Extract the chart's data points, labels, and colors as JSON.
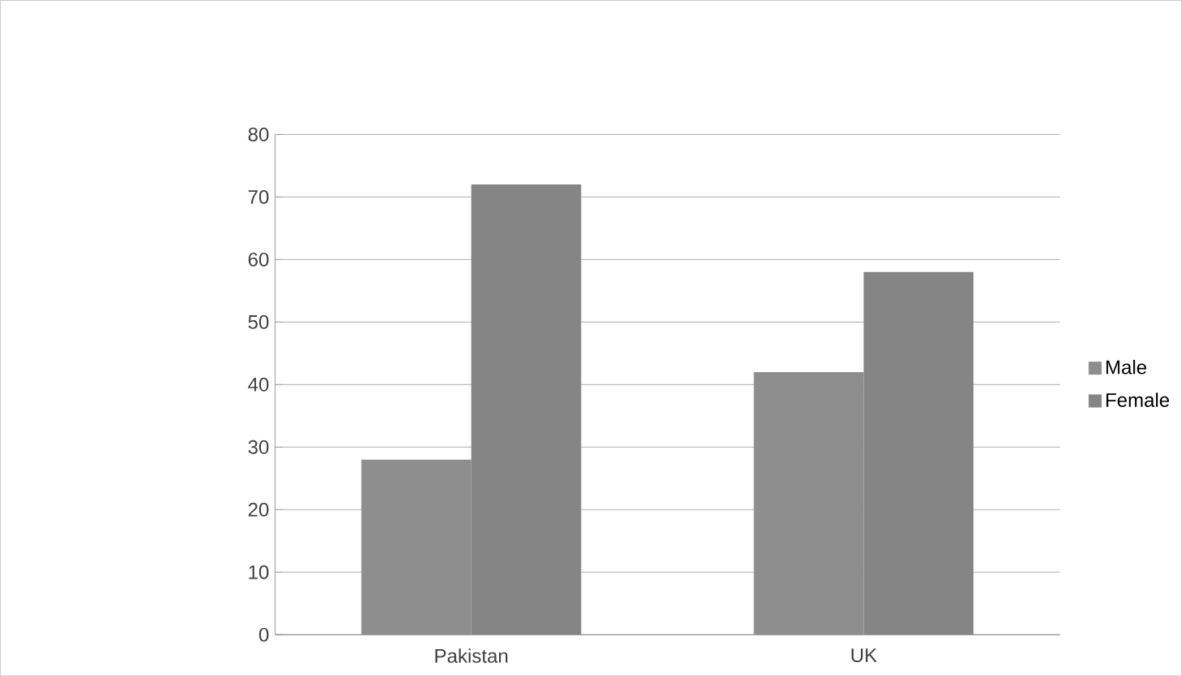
{
  "chart_data": {
    "type": "bar",
    "categories": [
      "Pakistan",
      "UK"
    ],
    "series": [
      {
        "name": "Male",
        "color": "#8e8e8e",
        "values": [
          28,
          42
        ]
      },
      {
        "name": "Female",
        "color": "#858585",
        "values": [
          72,
          58
        ]
      }
    ],
    "ylim": [
      0,
      80
    ],
    "yticks": [
      0,
      10,
      20,
      30,
      40,
      50,
      60,
      70,
      80
    ],
    "grid": "y",
    "legend": "right"
  }
}
